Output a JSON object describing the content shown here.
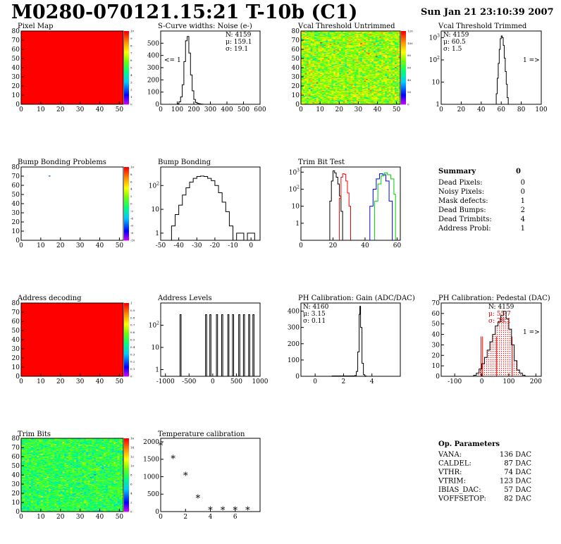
{
  "header": {
    "title": "M0280-070121.15:21 T-10b (C1)",
    "timestamp": "Sun Jan 21 23:10:39 2007"
  },
  "colors": {
    "red": "#ff0000",
    "blue": "#0000ff",
    "green": "#00cc00",
    "black": "#000000",
    "stat_red": "#cc0000"
  },
  "chart_data": [
    {
      "id": "pixel-map",
      "type": "heatmap",
      "title": "Pixel Map",
      "xlim": [
        0,
        52
      ],
      "ylim": [
        0,
        80
      ],
      "xticks": [
        "0",
        "10",
        "20",
        "30",
        "40",
        "50"
      ],
      "yticks": [
        "0",
        "10",
        "20",
        "30",
        "40",
        "50",
        "60",
        "70",
        "80"
      ],
      "fill": "uniform",
      "value": 10,
      "zrange": [
        0,
        10
      ],
      "palette_ticks": [
        "0",
        "1",
        "2",
        "3",
        "4",
        "5",
        "6",
        "7",
        "8",
        "9",
        "10"
      ]
    },
    {
      "id": "scurve-noise",
      "type": "line",
      "title": "S-Curve widths: Noise (e-)",
      "xlim": [
        0,
        600
      ],
      "ylim": [
        0,
        600
      ],
      "xticks": [
        "0",
        "100",
        "200",
        "300",
        "400",
        "500",
        "600"
      ],
      "yticks": [
        "0",
        "100",
        "200",
        "300",
        "400",
        "500"
      ],
      "stats": {
        "N": "4159",
        "mu": "159.1",
        "sigma": "19.1"
      },
      "annotation": "<= 1",
      "x": [
        90,
        100,
        110,
        120,
        130,
        140,
        150,
        160,
        170,
        180,
        190,
        200,
        210,
        220,
        230,
        240,
        250,
        260
      ],
      "y": [
        0,
        5,
        20,
        60,
        160,
        350,
        520,
        555,
        420,
        240,
        110,
        40,
        15,
        8,
        4,
        2,
        1,
        0
      ]
    },
    {
      "id": "vcal-untrimmed",
      "type": "heatmap",
      "title": "Vcal Threshold Untrimmed",
      "xlim": [
        0,
        52
      ],
      "ylim": [
        0,
        80
      ],
      "xticks": [
        "0",
        "10",
        "20",
        "30",
        "40",
        "50"
      ],
      "yticks": [
        "0",
        "10",
        "20",
        "30",
        "40",
        "50",
        "60",
        "70",
        "80"
      ],
      "fill": "noise",
      "center": 75,
      "spread": 12,
      "zrange": [
        0,
        120
      ],
      "palette_ticks": [
        "0",
        "20",
        "40",
        "60",
        "80",
        "100",
        "120"
      ]
    },
    {
      "id": "vcal-trimmed",
      "type": "line",
      "title": "Vcal Threshold Trimmed",
      "log": true,
      "xlim": [
        0,
        100
      ],
      "ylim": [
        1,
        2000
      ],
      "xticks": [
        "0",
        "20",
        "40",
        "60",
        "80",
        "100"
      ],
      "yticks": [
        "1",
        "10",
        "10^2",
        "10^3"
      ],
      "stats": {
        "N": "4159",
        "mu": "60.5",
        "sigma": "1.5"
      },
      "annotation": "1 =>",
      "x": [
        52,
        54,
        55,
        56,
        57,
        58,
        59,
        60,
        61,
        62,
        63,
        64,
        65,
        66,
        67,
        68
      ],
      "y": [
        0,
        1,
        3,
        15,
        70,
        300,
        900,
        1200,
        1000,
        450,
        120,
        30,
        8,
        2,
        1,
        0
      ]
    },
    {
      "id": "bump-problems",
      "type": "heatmap",
      "title": "Bump Bonding Problems",
      "xlim": [
        0,
        52
      ],
      "ylim": [
        0,
        80
      ],
      "xticks": [
        "0",
        "10",
        "20",
        "30",
        "40",
        "50"
      ],
      "yticks": [
        "0",
        "10",
        "20",
        "30",
        "40",
        "50",
        "60",
        "70",
        "80"
      ],
      "fill": "empty",
      "marks": [
        {
          "x": 14,
          "y": 70
        }
      ],
      "zrange": [
        -10,
        10
      ],
      "palette_ticks": [
        "-10",
        "-8",
        "-6",
        "-4",
        "-2",
        "0",
        "2",
        "4",
        "6",
        "8",
        "10"
      ]
    },
    {
      "id": "bump-bonding",
      "type": "line",
      "title": "Bump Bonding",
      "log": true,
      "xlim": [
        -50,
        5
      ],
      "ylim": [
        0.5,
        600
      ],
      "xticks": [
        "-50",
        "-40",
        "-30",
        "-20",
        "-10",
        "0"
      ],
      "yticks": [
        "1",
        "10",
        "10^2"
      ],
      "x": [
        -46,
        -44,
        -42,
        -40,
        -38,
        -36,
        -34,
        -32,
        -30,
        -28,
        -26,
        -24,
        -22,
        -20,
        -18,
        -16,
        -14,
        -12,
        -10,
        -8,
        -6,
        -4,
        -2,
        0,
        2
      ],
      "y": [
        0,
        2,
        6,
        15,
        40,
        80,
        140,
        200,
        240,
        250,
        240,
        200,
        160,
        100,
        50,
        20,
        8,
        2,
        0,
        1,
        1,
        0,
        1,
        1,
        0
      ]
    },
    {
      "id": "trim-bit-test",
      "type": "line",
      "title": "Trim Bit Test",
      "log": true,
      "xlim": [
        0,
        62
      ],
      "ylim": [
        0.1,
        2000
      ],
      "xticks": [
        "0",
        "20",
        "40",
        "60"
      ],
      "yticks": [
        "1",
        "10",
        "10^2",
        "10^3"
      ],
      "series": [
        {
          "color": "#000000",
          "x": [
            17,
            18,
            19,
            20,
            21,
            22,
            23,
            24,
            25,
            26
          ],
          "y": [
            0,
            20,
            300,
            1200,
            900,
            500,
            200,
            40,
            5,
            0
          ]
        },
        {
          "color": "#ff0000",
          "x": [
            22,
            24,
            25,
            26,
            27,
            28,
            29,
            30,
            31
          ],
          "y": [
            0,
            30,
            500,
            800,
            750,
            300,
            60,
            10,
            0
          ]
        },
        {
          "color": "#0000ff",
          "x": [
            41,
            43,
            45,
            47,
            49,
            51,
            53,
            55,
            57
          ],
          "y": [
            0,
            10,
            100,
            400,
            800,
            700,
            300,
            20,
            0
          ]
        },
        {
          "color": "#00cc00",
          "x": [
            43,
            46,
            48,
            50,
            52,
            54,
            56,
            58,
            59
          ],
          "y": [
            0,
            20,
            200,
            600,
            900,
            700,
            400,
            50,
            0
          ]
        }
      ]
    },
    {
      "id": "address-decoding",
      "type": "heatmap",
      "title": "Address decoding",
      "xlim": [
        0,
        52
      ],
      "ylim": [
        0,
        80
      ],
      "xticks": [
        "0",
        "10",
        "20",
        "30",
        "40",
        "50"
      ],
      "yticks": [
        "0",
        "10",
        "20",
        "30",
        "40",
        "50",
        "60",
        "70",
        "80"
      ],
      "fill": "uniform",
      "value": 1,
      "zrange": [
        0,
        1
      ],
      "palette_ticks": [
        "0",
        "0.1",
        "0.2",
        "0.3",
        "0.4",
        "0.5",
        "0.6",
        "0.7",
        "0.8",
        "0.9",
        "1"
      ]
    },
    {
      "id": "address-levels",
      "type": "bar",
      "title": "Address Levels",
      "log": true,
      "xlim": [
        -1100,
        1000
      ],
      "ylim": [
        0.5,
        1000
      ],
      "xticks": [
        "-1000",
        "-500",
        "0",
        "500",
        "1000"
      ],
      "yticks": [
        "1",
        "10",
        "10^2"
      ],
      "peaks": [
        -680,
        -140,
        -50,
        90,
        200,
        330,
        430,
        560,
        660,
        770,
        860
      ],
      "peak_height": 300
    },
    {
      "id": "ph-gain",
      "type": "line",
      "title": "PH Calibration: Gain (ADC/DAC)",
      "xlim": [
        -1,
        6
      ],
      "ylim": [
        0,
        450
      ],
      "xticks": [
        "0",
        "2",
        "4"
      ],
      "yticks": [
        "0",
        "100",
        "200",
        "300",
        "400"
      ],
      "stats": {
        "N": "4160",
        "mu": "3.15",
        "sigma": "0.11"
      },
      "x": [
        1.2,
        2.6,
        2.8,
        2.9,
        3.0,
        3.1,
        3.15,
        3.2,
        3.3,
        3.4,
        3.5,
        3.6
      ],
      "y": [
        2,
        2,
        5,
        30,
        150,
        380,
        430,
        300,
        80,
        10,
        2,
        0
      ]
    },
    {
      "id": "ph-pedestal",
      "type": "line",
      "title": "PH Calibration: Pedestal (DAC)",
      "xlim": [
        -150,
        220
      ],
      "ylim": [
        0,
        70
      ],
      "xticks": [
        "-100",
        "0",
        "100",
        "200"
      ],
      "yticks": [
        "0",
        "10",
        "20",
        "30",
        "40",
        "50",
        "60",
        "70"
      ],
      "stats": {
        "N": "4159",
        "mu": "55.7",
        "sigma": "28.1"
      },
      "annotation": "1 =>",
      "range_lines": [
        -3,
        3,
        55,
        112
      ],
      "x": [
        -30,
        -20,
        -10,
        0,
        10,
        20,
        30,
        40,
        50,
        60,
        70,
        80,
        90,
        100,
        110,
        120,
        130,
        140,
        150,
        160
      ],
      "y": [
        1,
        3,
        7,
        12,
        18,
        25,
        33,
        40,
        48,
        52,
        58,
        62,
        55,
        45,
        30,
        15,
        6,
        3,
        1,
        0
      ]
    },
    {
      "id": "trim-bits",
      "type": "heatmap",
      "title": "Trim Bits",
      "xlim": [
        0,
        52
      ],
      "ylim": [
        0,
        80
      ],
      "xticks": [
        "0",
        "10",
        "20",
        "30",
        "40",
        "50"
      ],
      "yticks": [
        "0",
        "10",
        "20",
        "30",
        "40",
        "50",
        "60",
        "70",
        "80"
      ],
      "fill": "noise",
      "center": 8,
      "spread": 1.2,
      "zrange": [
        0,
        16
      ],
      "palette_ticks": [
        "0",
        "2",
        "4",
        "6",
        "8",
        "10",
        "12",
        "14",
        "16"
      ]
    },
    {
      "id": "temperature-calibration",
      "type": "scatter",
      "title": "Temperature calibration",
      "xlim": [
        0,
        8
      ],
      "ylim": [
        0,
        2100
      ],
      "xticks": [
        "0",
        "2",
        "4",
        "6"
      ],
      "yticks": [
        "0",
        "500",
        "1000",
        "1500",
        "2000"
      ],
      "x": [
        0,
        1,
        2,
        3,
        4,
        5,
        6,
        7
      ],
      "y": [
        1880,
        1500,
        1020,
        370,
        30,
        30,
        30,
        30
      ]
    }
  ],
  "summary": {
    "heading": "Summary",
    "heading_value": "0",
    "rows": [
      {
        "label": "Dead Pixels:",
        "value": "0"
      },
      {
        "label": "Noisy Pixels:",
        "value": "0"
      },
      {
        "label": "Mask defects:",
        "value": "1"
      },
      {
        "label": "Dead Bumps:",
        "value": "2"
      },
      {
        "label": "Dead Trimbits:",
        "value": "4"
      },
      {
        "label": "Address Probl:",
        "value": "1"
      }
    ]
  },
  "op_params": {
    "heading": "Op. Parameters",
    "rows": [
      {
        "label": "VANA:",
        "value": "136 DAC"
      },
      {
        "label": "CALDEL:",
        "value": "87 DAC"
      },
      {
        "label": "VTHR:",
        "value": "74 DAC"
      },
      {
        "label": "VTRIM:",
        "value": "123 DAC"
      },
      {
        "label": "IBIAS_DAC:",
        "value": "57 DAC"
      },
      {
        "label": "VOFFSETOP:",
        "value": "82 DAC"
      }
    ]
  }
}
